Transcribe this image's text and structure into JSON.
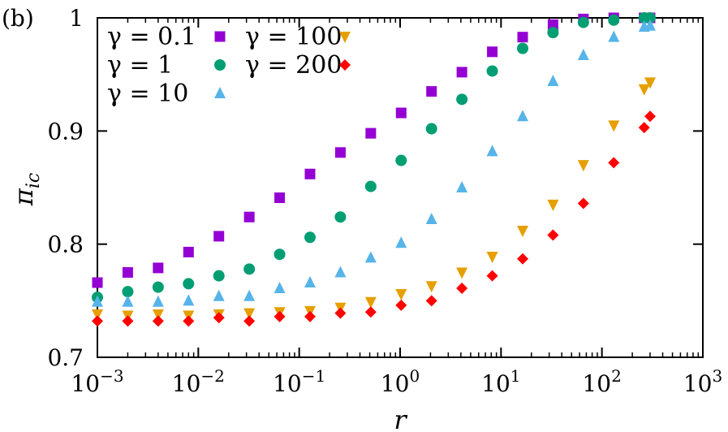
{
  "panel_label": "(b)",
  "colors": {
    "g0_1": "#9400D3",
    "g1": "#009E73",
    "g10": "#56B4E9",
    "g100": "#E69F00",
    "g200": "#FF0000"
  },
  "chart_data": {
    "type": "scatter",
    "xlabel": "r",
    "ylabel": "π_ic",
    "xscale": "log",
    "xlim": [
      0.001,
      1000
    ],
    "ylim": [
      0.7,
      1.0
    ],
    "x_ticks": [
      0.001,
      0.01,
      0.1,
      1,
      10,
      100,
      1000
    ],
    "x_tick_labels": [
      {
        "base": "10",
        "exp": "−3"
      },
      {
        "base": "10",
        "exp": "−2"
      },
      {
        "base": "10",
        "exp": "−1"
      },
      {
        "base": "10",
        "exp": "0"
      },
      {
        "base": "10",
        "exp": "1"
      },
      {
        "base": "10",
        "exp": "2"
      },
      {
        "base": "10",
        "exp": "3"
      }
    ],
    "y_ticks": [
      0.7,
      0.8,
      0.9,
      1.0
    ],
    "y_tick_labels": [
      "0.7",
      "0.8",
      "0.9",
      "1"
    ],
    "grid": false,
    "legend_position": "top-left",
    "x": [
      0.001,
      0.002,
      0.004,
      0.008,
      0.016,
      0.032,
      0.064,
      0.128,
      0.256,
      0.512,
      1.024,
      2.048,
      4.096,
      8.192,
      16.384,
      32.768,
      65.536,
      131.072,
      262.144,
      300
    ],
    "series": [
      {
        "name": "γ = 0.1",
        "marker": "square",
        "color": "#9400D3",
        "values": [
          0.766,
          0.775,
          0.779,
          0.793,
          0.807,
          0.824,
          0.841,
          0.862,
          0.881,
          0.898,
          0.916,
          0.935,
          0.952,
          0.97,
          0.983,
          0.994,
          0.999,
          1.0,
          1.0,
          1.0
        ]
      },
      {
        "name": "γ = 1",
        "marker": "circle",
        "color": "#009E73",
        "values": [
          0.753,
          0.758,
          0.762,
          0.765,
          0.772,
          0.778,
          0.791,
          0.806,
          0.824,
          0.851,
          0.874,
          0.902,
          0.928,
          0.953,
          0.973,
          0.987,
          0.996,
          0.998,
          1.0,
          1.0
        ]
      },
      {
        "name": "γ = 10",
        "marker": "triangle-up",
        "color": "#56B4E9",
        "values": [
          0.749,
          0.749,
          0.749,
          0.75,
          0.754,
          0.754,
          0.761,
          0.766,
          0.775,
          0.788,
          0.801,
          0.822,
          0.85,
          0.882,
          0.913,
          0.944,
          0.967,
          0.983,
          0.992,
          0.993
        ]
      },
      {
        "name": "γ = 100",
        "marker": "triangle-down",
        "color": "#E69F00",
        "values": [
          0.738,
          0.737,
          0.738,
          0.737,
          0.738,
          0.739,
          0.74,
          0.741,
          0.744,
          0.749,
          0.756,
          0.763,
          0.775,
          0.789,
          0.812,
          0.835,
          0.87,
          0.905,
          0.937,
          0.943
        ]
      },
      {
        "name": "γ = 200",
        "marker": "diamond",
        "color": "#FF0000",
        "values": [
          0.732,
          0.732,
          0.732,
          0.732,
          0.735,
          0.732,
          0.736,
          0.736,
          0.739,
          0.74,
          0.746,
          0.75,
          0.761,
          0.772,
          0.787,
          0.808,
          0.836,
          0.872,
          0.903,
          0.913
        ]
      }
    ],
    "legend_layout": [
      {
        "series": 0,
        "col": 0,
        "row": 0
      },
      {
        "series": 1,
        "col": 0,
        "row": 1
      },
      {
        "series": 2,
        "col": 0,
        "row": 2
      },
      {
        "series": 3,
        "col": 1,
        "row": 0
      },
      {
        "series": 4,
        "col": 1,
        "row": 1
      }
    ]
  }
}
